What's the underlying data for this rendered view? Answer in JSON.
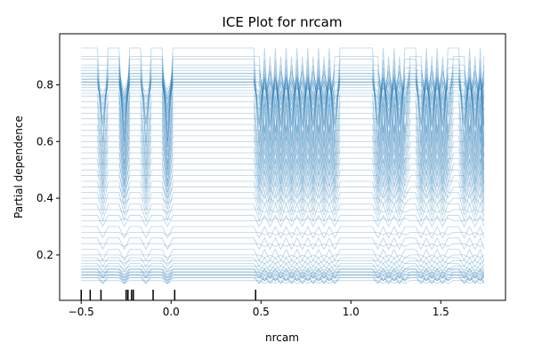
{
  "chart_data": {
    "type": "line",
    "title": "ICE Plot for nrcam",
    "xlabel": "nrcam",
    "ylabel": "Partial dependence",
    "xlim": [
      -0.62,
      1.86
    ],
    "ylim": [
      0.04,
      0.98
    ],
    "xticks": [
      -0.5,
      0.0,
      0.5,
      1.0,
      1.5
    ],
    "xtick_labels": [
      "−0.5",
      "0.0",
      "0.5",
      "1.0",
      "1.5"
    ],
    "yticks": [
      0.2,
      0.4,
      0.6,
      0.8
    ],
    "ytick_labels": [
      "0.2",
      "0.4",
      "0.6",
      "0.8"
    ],
    "line_color": "#1f77b4",
    "grid": false,
    "legend": "none",
    "x_grid": [
      -0.5,
      -0.47,
      -0.44,
      -0.41,
      -0.38,
      -0.35,
      -0.32,
      -0.29,
      -0.26,
      -0.23,
      -0.2,
      -0.17,
      -0.14,
      -0.11,
      -0.08,
      -0.05,
      -0.02,
      0.01,
      0.04,
      0.07,
      0.1,
      0.13,
      0.16,
      0.19,
      0.22,
      0.25,
      0.28,
      0.31,
      0.34,
      0.37,
      0.4,
      0.43,
      0.46,
      0.49,
      0.52,
      0.55,
      0.58,
      0.61,
      0.64,
      0.67,
      0.7,
      0.73,
      0.76,
      0.79,
      0.82,
      0.85,
      0.88,
      0.91,
      0.94,
      0.97,
      1.0,
      1.03,
      1.06,
      1.09,
      1.12,
      1.15,
      1.18,
      1.21,
      1.24,
      1.27,
      1.3,
      1.33,
      1.36,
      1.39,
      1.42,
      1.45,
      1.48,
      1.51,
      1.54,
      1.57,
      1.6,
      1.63,
      1.66,
      1.69,
      1.72,
      1.74
    ],
    "series_levels": [
      [
        0.93,
        0.58
      ],
      [
        0.9,
        0.62
      ],
      [
        0.89,
        0.55
      ],
      [
        0.87,
        0.7
      ],
      [
        0.86,
        0.65
      ],
      [
        0.85,
        0.75
      ],
      [
        0.84,
        0.6
      ],
      [
        0.84,
        0.78
      ],
      [
        0.83,
        0.68
      ],
      [
        0.83,
        0.72
      ],
      [
        0.82,
        0.76
      ],
      [
        0.82,
        0.74
      ],
      [
        0.82,
        0.66
      ],
      [
        0.81,
        0.77
      ],
      [
        0.81,
        0.71
      ],
      [
        0.81,
        0.63
      ],
      [
        0.8,
        0.73
      ],
      [
        0.8,
        0.69
      ],
      [
        0.79,
        0.75
      ],
      [
        0.78,
        0.6
      ],
      [
        0.77,
        0.52
      ],
      [
        0.76,
        0.58
      ],
      [
        0.74,
        0.5
      ],
      [
        0.72,
        0.55
      ],
      [
        0.7,
        0.48
      ],
      [
        0.68,
        0.52
      ],
      [
        0.66,
        0.45
      ],
      [
        0.64,
        0.5
      ],
      [
        0.62,
        0.44
      ],
      [
        0.6,
        0.48
      ],
      [
        0.58,
        0.42
      ],
      [
        0.56,
        0.46
      ],
      [
        0.54,
        0.4
      ],
      [
        0.52,
        0.44
      ],
      [
        0.5,
        0.38
      ],
      [
        0.48,
        0.42
      ],
      [
        0.46,
        0.36
      ],
      [
        0.44,
        0.4
      ],
      [
        0.42,
        0.34
      ],
      [
        0.4,
        0.38
      ],
      [
        0.38,
        0.32
      ],
      [
        0.36,
        0.35
      ],
      [
        0.34,
        0.3
      ],
      [
        0.32,
        0.33
      ],
      [
        0.3,
        0.26
      ],
      [
        0.28,
        0.27
      ],
      [
        0.26,
        0.22
      ],
      [
        0.24,
        0.23
      ],
      [
        0.22,
        0.18
      ],
      [
        0.2,
        0.19
      ],
      [
        0.19,
        0.16
      ],
      [
        0.18,
        0.17
      ],
      [
        0.17,
        0.14
      ],
      [
        0.16,
        0.15
      ],
      [
        0.15,
        0.13
      ],
      [
        0.15,
        0.14
      ],
      [
        0.15,
        0.12
      ],
      [
        0.14,
        0.13
      ],
      [
        0.14,
        0.12
      ],
      [
        0.14,
        0.11
      ],
      [
        0.13,
        0.12
      ],
      [
        0.13,
        0.11
      ],
      [
        0.13,
        0.1
      ],
      [
        0.12,
        0.11
      ],
      [
        0.12,
        0.1
      ],
      [
        0.11,
        0.1
      ]
    ],
    "series_patterns": [
      [
        0,
        0,
        0,
        0,
        1,
        0,
        0,
        0,
        1,
        0,
        0,
        0,
        1,
        0,
        0,
        0,
        1,
        0,
        0,
        0,
        0,
        0,
        0,
        0,
        0,
        0,
        0,
        0,
        0,
        0,
        0,
        0,
        0,
        1,
        0,
        1,
        0,
        1,
        0,
        1,
        0,
        1,
        0,
        1,
        0,
        1,
        0,
        1,
        0,
        0,
        0,
        0,
        0,
        0,
        0,
        1,
        0,
        1,
        0,
        1,
        0,
        0,
        0,
        1,
        0,
        1,
        0,
        1,
        0,
        0,
        0,
        1,
        0,
        1,
        0,
        1
      ],
      [
        0,
        0,
        0,
        0,
        0,
        0,
        0,
        0,
        1,
        0,
        0,
        0,
        0,
        0,
        0,
        0,
        1,
        0,
        0,
        0,
        0,
        0,
        0,
        0,
        0,
        0,
        0,
        0,
        0,
        0,
        0,
        0,
        0,
        0,
        1,
        0,
        1,
        0,
        1,
        0,
        1,
        0,
        1,
        0,
        1,
        0,
        1,
        0,
        0,
        0,
        0,
        0,
        0,
        0,
        0,
        0,
        1,
        0,
        1,
        0,
        1,
        0,
        0,
        0,
        1,
        0,
        1,
        0,
        1,
        0,
        0,
        0,
        1,
        0,
        1,
        0
      ]
    ],
    "rug_x": [
      -0.5,
      -0.45,
      -0.39,
      -0.25,
      -0.24,
      -0.22,
      -0.21,
      -0.1,
      0.02,
      0.47
    ]
  }
}
